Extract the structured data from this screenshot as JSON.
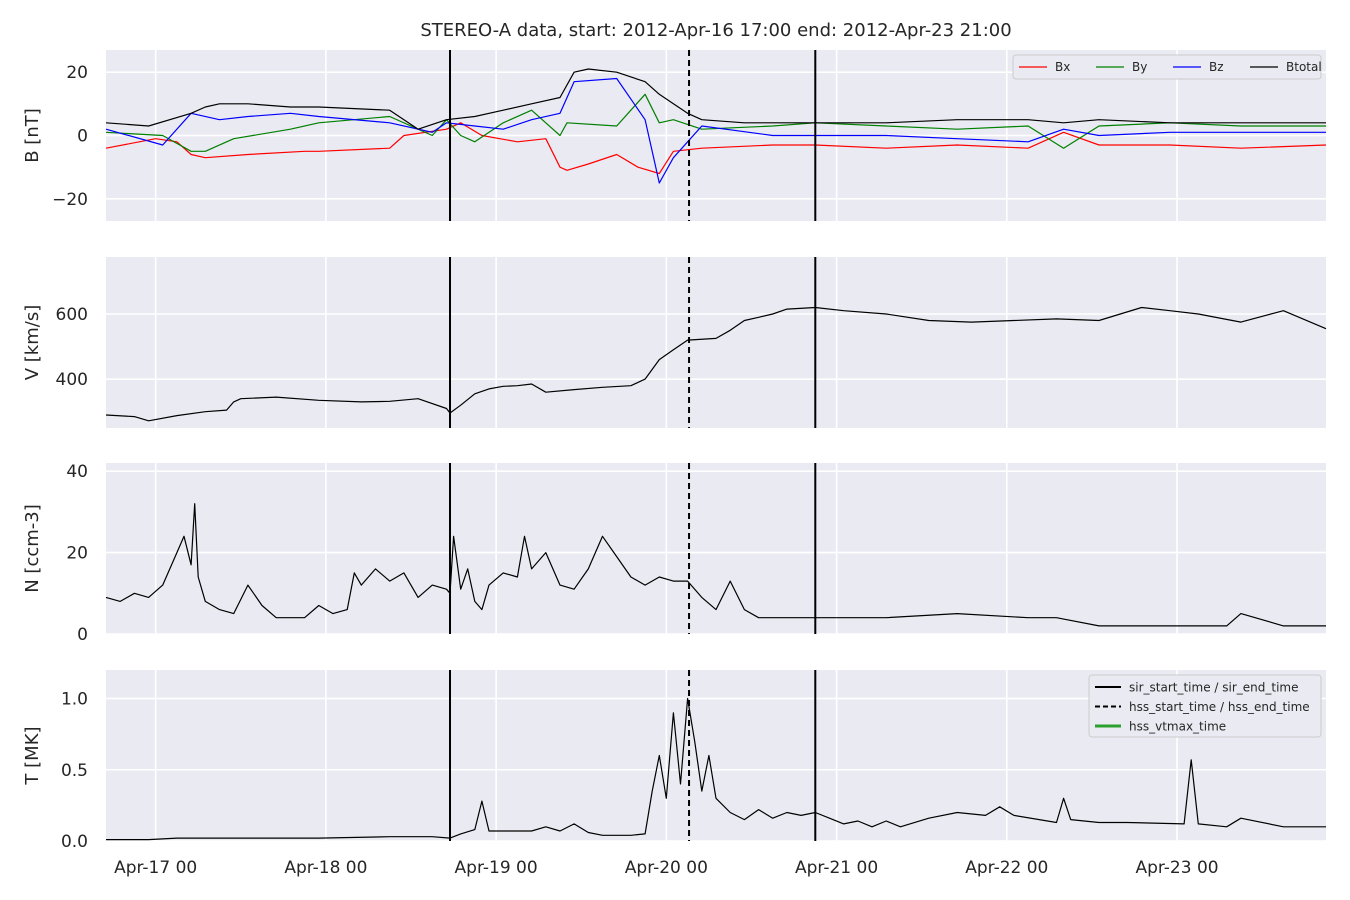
{
  "figure": {
    "title": "STEREO-A data, start: 2012-Apr-16 17:00  end: 2012-Apr-23 21:00",
    "background": "#ffffff",
    "panel_background": "#eaeaf2",
    "grid_color": "#ffffff"
  },
  "chart_data": [
    {
      "type": "line",
      "ylabel": "B [nT]",
      "ylim": [
        -27,
        27
      ],
      "yticks": [
        {
          "value": -20,
          "label": "−20"
        },
        {
          "value": 0,
          "label": "0"
        },
        {
          "value": 20,
          "label": "20"
        }
      ],
      "xlim": [
        0,
        172
      ],
      "x_unit": "hours since 2012-Apr-16 17:00",
      "grid": true,
      "legend": {
        "placement": "top-right",
        "columns": 4,
        "entries": [
          {
            "label": "Bx",
            "color": "#ff0000"
          },
          {
            "label": "By",
            "color": "#008000"
          },
          {
            "label": "Bz",
            "color": "#0000ff"
          },
          {
            "label": "Btotal",
            "color": "#000000"
          }
        ]
      },
      "series": [
        {
          "name": "Bx",
          "color": "#ff0000",
          "x": [
            0,
            7,
            10,
            12,
            14,
            20,
            28,
            30,
            40,
            42,
            48,
            50,
            53,
            58,
            62,
            64,
            65,
            68,
            72,
            75,
            78,
            80,
            84,
            94,
            100,
            110,
            120,
            130,
            135,
            140,
            150,
            160,
            172
          ],
          "y": [
            -4,
            -1,
            -2,
            -6,
            -7,
            -6,
            -5,
            -5,
            -4,
            0,
            2,
            4,
            0,
            -2,
            -1,
            -10,
            -11,
            -9,
            -6,
            -10,
            -12,
            -5,
            -4,
            -3,
            -3,
            -4,
            -3,
            -4,
            1,
            -3,
            -3,
            -4,
            -3
          ]
        },
        {
          "name": "By",
          "color": "#008000",
          "x": [
            0,
            8,
            12,
            14,
            18,
            26,
            30,
            40,
            46,
            48,
            50,
            52,
            56,
            60,
            64,
            65,
            72,
            76,
            78,
            80,
            84,
            94,
            100,
            110,
            120,
            130,
            135,
            140,
            150,
            160,
            172
          ],
          "y": [
            1,
            0,
            -5,
            -5,
            -1,
            2,
            4,
            6,
            0,
            5,
            0,
            -2,
            4,
            8,
            0,
            4,
            3,
            13,
            4,
            5,
            2,
            3,
            4,
            3,
            2,
            3,
            -4,
            3,
            4,
            3,
            3
          ]
        },
        {
          "name": "Bz",
          "color": "#0000ff",
          "x": [
            0,
            8,
            12,
            16,
            20,
            26,
            30,
            40,
            46,
            48,
            52,
            56,
            60,
            64,
            66,
            72,
            76,
            78,
            80,
            84,
            94,
            100,
            110,
            120,
            130,
            135,
            140,
            150,
            160,
            172
          ],
          "y": [
            2,
            -3,
            7,
            5,
            6,
            7,
            6,
            4,
            1,
            4,
            3,
            2,
            5,
            7,
            17,
            18,
            5,
            -15,
            -7,
            3,
            0,
            0,
            0,
            -1,
            -2,
            2,
            0,
            1,
            1,
            1
          ]
        },
        {
          "name": "Btotal",
          "color": "#000000",
          "x": [
            0,
            6,
            12,
            14,
            16,
            20,
            26,
            30,
            40,
            44,
            48,
            52,
            56,
            60,
            64,
            66,
            68,
            72,
            76,
            78,
            80,
            82,
            84,
            90,
            94,
            100,
            110,
            120,
            130,
            135,
            140,
            150,
            160,
            172
          ],
          "y": [
            4,
            3,
            7,
            9,
            10,
            10,
            9,
            9,
            8,
            2,
            5,
            6,
            8,
            10,
            12,
            20,
            21,
            20,
            17,
            13,
            10,
            7,
            5,
            4,
            4,
            4,
            4,
            5,
            5,
            4,
            5,
            4,
            4,
            4
          ]
        }
      ],
      "vlines": [
        {
          "x": 48.5,
          "style": "solid",
          "color": "#000000"
        },
        {
          "x": 82.2,
          "style": "dashed",
          "color": "#000000"
        },
        {
          "x": 100.0,
          "style": "solid",
          "color": "#000000"
        }
      ]
    },
    {
      "type": "line",
      "ylabel": "V [km/s]",
      "ylim": [
        250,
        775
      ],
      "yticks": [
        {
          "value": 400,
          "label": "400"
        },
        {
          "value": 600,
          "label": "600"
        }
      ],
      "xlim": [
        0,
        172
      ],
      "grid": true,
      "series": [
        {
          "name": "V",
          "color": "#000000",
          "x": [
            0,
            4,
            6,
            10,
            14,
            17,
            18,
            19,
            24,
            30,
            36,
            40,
            44,
            48,
            48.5,
            50,
            52,
            54,
            56,
            58,
            60,
            62,
            66,
            70,
            74,
            76,
            78,
            80,
            82,
            86,
            88,
            90,
            92,
            94,
            96,
            100,
            104,
            110,
            116,
            122,
            128,
            134,
            140,
            146,
            150,
            154,
            160,
            166,
            172
          ],
          "y": [
            290,
            285,
            272,
            288,
            300,
            305,
            330,
            340,
            345,
            335,
            330,
            332,
            340,
            310,
            296,
            320,
            355,
            370,
            378,
            380,
            385,
            360,
            368,
            375,
            380,
            400,
            460,
            490,
            520,
            525,
            550,
            580,
            590,
            600,
            615,
            620,
            610,
            600,
            580,
            575,
            580,
            585,
            580,
            620,
            610,
            600,
            575,
            610,
            555
          ]
        }
      ],
      "vlines": [
        {
          "x": 48.5,
          "style": "solid",
          "color": "#000000"
        },
        {
          "x": 82.2,
          "style": "dashed",
          "color": "#000000"
        },
        {
          "x": 100.0,
          "style": "solid",
          "color": "#000000"
        }
      ]
    },
    {
      "type": "line",
      "ylabel": "N [ccm-3]",
      "ylim": [
        0,
        42
      ],
      "yticks": [
        {
          "value": 0,
          "label": "0"
        },
        {
          "value": 20,
          "label": "20"
        },
        {
          "value": 40,
          "label": "40"
        }
      ],
      "xlim": [
        0,
        172
      ],
      "grid": true,
      "series": [
        {
          "name": "N",
          "color": "#000000",
          "x": [
            0,
            2,
            4,
            6,
            8,
            10,
            11,
            12,
            12.5,
            13,
            14,
            16,
            18,
            20,
            22,
            24,
            26,
            28,
            30,
            32,
            34,
            35,
            36,
            38,
            40,
            42,
            44,
            46,
            48,
            48.5,
            49,
            50,
            51,
            52,
            53,
            54,
            56,
            58,
            59,
            60,
            62,
            64,
            66,
            68,
            70,
            72,
            74,
            76,
            78,
            80,
            82,
            84,
            86,
            88,
            90,
            92,
            94,
            96,
            98,
            100,
            104,
            110,
            120,
            130,
            134,
            140,
            150,
            158,
            160,
            166,
            172
          ],
          "y": [
            9,
            8,
            10,
            9,
            12,
            20,
            24,
            17,
            32,
            14,
            8,
            6,
            5,
            12,
            7,
            4,
            4,
            4,
            7,
            5,
            6,
            15,
            12,
            16,
            13,
            15,
            9,
            12,
            11,
            10,
            24,
            11,
            16,
            8,
            6,
            12,
            15,
            14,
            24,
            16,
            20,
            12,
            11,
            16,
            24,
            19,
            14,
            12,
            14,
            13,
            13,
            9,
            6,
            13,
            6,
            4,
            4,
            4,
            4,
            4,
            4,
            4,
            5,
            4,
            4,
            2,
            2,
            2,
            5,
            2,
            2
          ]
        }
      ],
      "vlines": [
        {
          "x": 48.5,
          "style": "solid",
          "color": "#000000"
        },
        {
          "x": 82.2,
          "style": "dashed",
          "color": "#000000"
        },
        {
          "x": 100.0,
          "style": "solid",
          "color": "#000000"
        }
      ]
    },
    {
      "type": "line",
      "ylabel": "T [MK]",
      "ylim": [
        0,
        1.2
      ],
      "yticks": [
        {
          "value": 0.0,
          "label": "0.0"
        },
        {
          "value": 0.5,
          "label": "0.5"
        },
        {
          "value": 1.0,
          "label": "1.0"
        }
      ],
      "xlim": [
        0,
        172
      ],
      "grid": true,
      "legend": {
        "placement": "top-right",
        "columns": 1,
        "entries": [
          {
            "label": "sir_start_time / sir_end_time",
            "color": "#000000",
            "style": "solid"
          },
          {
            "label": "hss_start_time / hss_end_time",
            "color": "#000000",
            "style": "dashed"
          },
          {
            "label": "hss_vtmax_time",
            "color": "#2ca02c",
            "style": "solid"
          }
        ]
      },
      "series": [
        {
          "name": "T",
          "color": "#000000",
          "x": [
            0,
            6,
            10,
            20,
            30,
            40,
            46,
            48.5,
            50,
            52,
            53,
            54,
            56,
            60,
            62,
            64,
            66,
            68,
            70,
            74,
            76,
            77,
            78,
            79,
            80,
            81,
            82,
            83,
            84,
            85,
            86,
            88,
            90,
            92,
            94,
            96,
            98,
            100,
            102,
            104,
            106,
            108,
            110,
            112,
            116,
            120,
            124,
            126,
            128,
            134,
            135,
            136,
            140,
            144,
            152,
            153,
            154,
            158,
            160,
            166,
            172
          ],
          "y": [
            0.01,
            0.01,
            0.02,
            0.02,
            0.02,
            0.03,
            0.03,
            0.02,
            0.05,
            0.08,
            0.28,
            0.07,
            0.07,
            0.07,
            0.1,
            0.07,
            0.12,
            0.06,
            0.04,
            0.04,
            0.05,
            0.35,
            0.6,
            0.3,
            0.9,
            0.4,
            1.0,
            0.7,
            0.35,
            0.6,
            0.3,
            0.2,
            0.15,
            0.22,
            0.16,
            0.2,
            0.18,
            0.2,
            0.16,
            0.12,
            0.14,
            0.1,
            0.14,
            0.1,
            0.16,
            0.2,
            0.18,
            0.24,
            0.18,
            0.13,
            0.3,
            0.15,
            0.13,
            0.13,
            0.12,
            0.57,
            0.12,
            0.1,
            0.16,
            0.1,
            0.1
          ]
        }
      ],
      "vlines": [
        {
          "x": 48.5,
          "style": "solid",
          "color": "#000000"
        },
        {
          "x": 82.2,
          "style": "dashed",
          "color": "#000000"
        },
        {
          "x": 100.0,
          "style": "solid",
          "color": "#000000"
        }
      ]
    }
  ],
  "x_axis": {
    "ticks": [
      {
        "value": 7,
        "label": "Apr-17 00"
      },
      {
        "value": 31,
        "label": "Apr-18 00"
      },
      {
        "value": 55,
        "label": "Apr-19 00"
      },
      {
        "value": 79,
        "label": "Apr-20 00"
      },
      {
        "value": 103,
        "label": "Apr-21 00"
      },
      {
        "value": 127,
        "label": "Apr-22 00"
      },
      {
        "value": 151,
        "label": "Apr-23 00"
      }
    ]
  }
}
